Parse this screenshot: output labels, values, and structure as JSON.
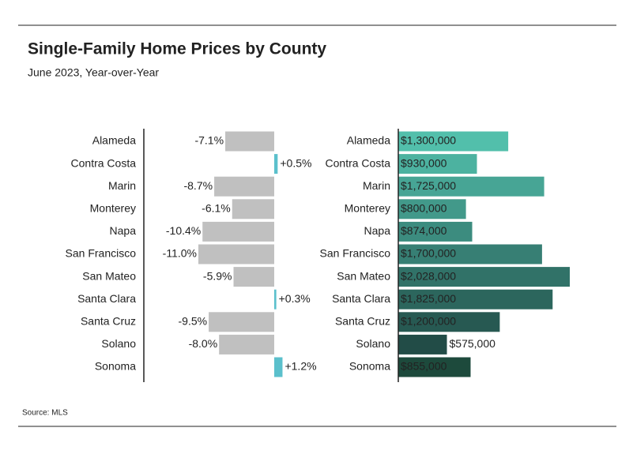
{
  "title": "Single-Family Home Prices by County",
  "subtitle": "June 2023, Year-over-Year",
  "source": "Source: MLS",
  "chart_data": [
    {
      "type": "hbar",
      "categories": [
        "Alameda",
        "Contra Costa",
        "Marin",
        "Monterey",
        "Napa",
        "San Francisco",
        "San Mateo",
        "Santa Clara",
        "Santa Cruz",
        "Solano",
        "Sonoma"
      ],
      "values": [
        -7.1,
        0.5,
        -8.7,
        -6.1,
        -10.4,
        -11.0,
        -5.9,
        0.3,
        -9.5,
        -8.0,
        1.2
      ],
      "value_labels": [
        "-7.1%",
        "+0.5%",
        "-8.7%",
        "-6.1%",
        "-10.4%",
        "-11.0%",
        "-5.9%",
        "+0.3%",
        "-9.5%",
        "-8.0%",
        "+1.2%"
      ],
      "colors": [
        "#c0c0c0",
        "#5bc0cc",
        "#c0c0c0",
        "#c0c0c0",
        "#c0c0c0",
        "#c0c0c0",
        "#c0c0c0",
        "#5bc0cc",
        "#c0c0c0",
        "#c0c0c0",
        "#5bc0cc"
      ]
    },
    {
      "type": "hbar",
      "categories": [
        "Alameda",
        "Contra Costa",
        "Marin",
        "Monterey",
        "Napa",
        "San Francisco",
        "San Mateo",
        "Santa Clara",
        "Santa Cruz",
        "Solano",
        "Sonoma"
      ],
      "values": [
        1300000,
        930000,
        1725000,
        800000,
        874000,
        1700000,
        2028000,
        1825000,
        1200000,
        575000,
        855000
      ],
      "value_labels": [
        "$1,300,000",
        "$930,000",
        "$1,725,000",
        "$800,000",
        "$874,000",
        "$1,700,000",
        "$2,028,000",
        "$1,825,000",
        "$1,200,000",
        "$575,000",
        "$855,000"
      ],
      "colors": [
        "#52bfab",
        "#4cb2a0",
        "#47a595",
        "#42998a",
        "#3c8c7f",
        "#377f74",
        "#317268",
        "#2c665d",
        "#275952",
        "#224c47",
        "#1d4a3c"
      ]
    }
  ]
}
